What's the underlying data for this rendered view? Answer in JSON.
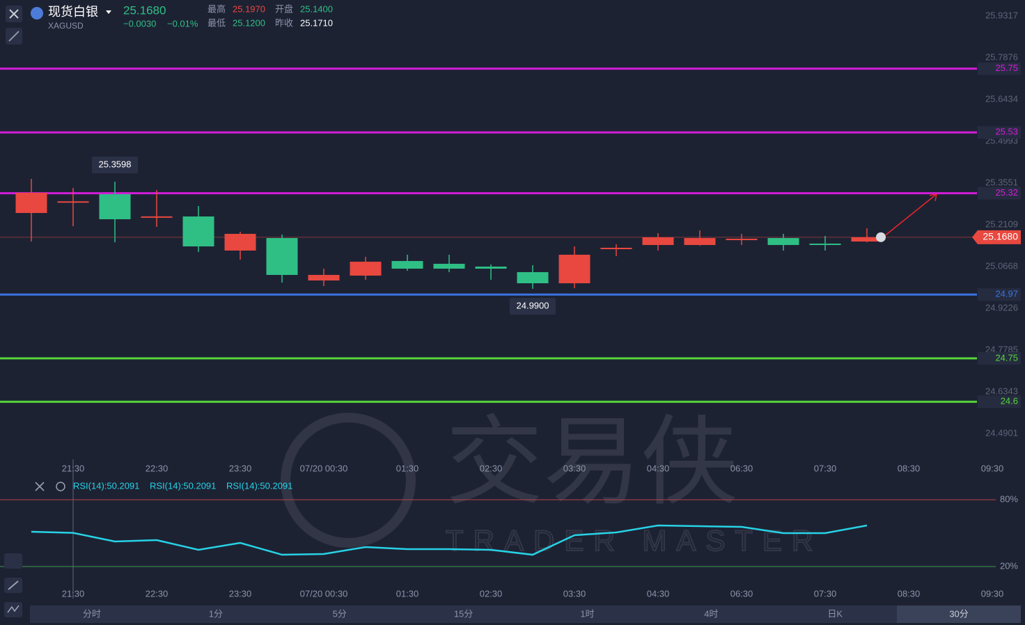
{
  "header": {
    "name": "现货白银",
    "symbol": "XAGUSD",
    "price": "25.1680",
    "change": "−0.0030",
    "change_pct": "−0.01%",
    "high_label": "最高",
    "high": "25.1970",
    "open_label": "开盘",
    "open": "25.1400",
    "low_label": "最低",
    "low": "25.1200",
    "prev_label": "昨收",
    "prev": "25.1710"
  },
  "watermark": {
    "cn": "交易侠",
    "en": "TRADER MASTER"
  },
  "tabs": [
    "分时",
    "1分",
    "5分",
    "15分",
    "1时",
    "4时",
    "日K",
    "30分"
  ],
  "chart_data": [
    {
      "type": "candlestick",
      "categories": [
        null,
        "21:30",
        null,
        "22:30",
        null,
        "23:30",
        null,
        "07/20 00:30",
        null,
        "01:30",
        null,
        "02:30",
        null,
        "03:30",
        null,
        "04:30",
        null,
        "06:30",
        null,
        "07:30",
        null,
        "08:30",
        null,
        "09:30"
      ],
      "open": [
        25.2517,
        25.29,
        25.3166,
        25.2373,
        25.2397,
        25.122,
        25.1652,
        25.0187,
        25.0355,
        25.0859,
        25.0763,
        25.0667,
        25.0475,
        25.0091,
        25.1268,
        25.1412,
        25.1412,
        25.1604,
        25.1652,
        25.146,
        25.1532,
        null,
        null,
        null
      ],
      "high": [
        25.3695,
        25.3382,
        25.3598,
        25.331,
        25.2757,
        25.1869,
        25.1773,
        25.0595,
        25.1004,
        25.1076,
        25.1076,
        25.0739,
        25.0715,
        25.1364,
        25.1436,
        25.1821,
        25.1917,
        25.1797,
        25.1797,
        25.1725,
        25.1989,
        null,
        null,
        null
      ],
      "low": [
        25.1532,
        25.2061,
        25.1508,
        25.2037,
        25.1172,
        25.0907,
        25.0115,
        24.9995,
        25.0211,
        25.0523,
        25.0475,
        25.0211,
        24.99,
        24.9922,
        25.1028,
        25.122,
        25.1388,
        25.1412,
        25.122,
        25.122,
        25.1508,
        null,
        null,
        null
      ],
      "close": [
        25.3214,
        25.292,
        25.2301,
        25.24,
        25.1364,
        25.1797,
        25.0379,
        25.0379,
        25.0835,
        25.0595,
        25.0595,
        25.0595,
        25.0091,
        25.1076,
        25.1316,
        25.1676,
        25.1652,
        25.1628,
        25.1412,
        25.1412,
        25.168,
        null,
        null,
        null
      ],
      "high_labels": [
        null,
        null,
        "25.3598",
        null,
        null,
        null,
        null,
        null,
        null,
        null,
        null,
        null,
        null,
        null,
        null,
        null,
        null,
        null,
        null,
        null,
        null,
        null,
        null,
        null
      ],
      "low_labels": [
        null,
        null,
        null,
        null,
        null,
        null,
        null,
        null,
        null,
        null,
        null,
        null,
        "24.9900",
        null,
        null,
        null,
        null,
        null,
        null,
        null,
        null,
        null,
        null,
        null
      ],
      "up_color": "#e8483f",
      "down_color": "#2fbf85",
      "ylim": [
        24.4012,
        25.987
      ],
      "yticks": [
        24.4901,
        24.6343,
        24.7785,
        24.9226,
        25.0668,
        25.2109,
        25.3551,
        25.4993,
        25.6434,
        25.7876,
        25.9317
      ],
      "levels": [
        {
          "value": 25.75,
          "color": "#d21ed8"
        },
        {
          "value": 25.53,
          "color": "#d21ed8"
        },
        {
          "value": 25.32,
          "color": "#d21ed8"
        },
        {
          "value": 24.97,
          "color": "#3b73e0"
        },
        {
          "value": 24.75,
          "color": "#55d63a"
        },
        {
          "value": 24.6,
          "color": "#55d63a"
        }
      ],
      "last_price": {
        "value": 25.168,
        "label": "25.1680"
      }
    },
    {
      "type": "line",
      "categories": [
        null,
        "21:30",
        null,
        "22:30",
        null,
        "23:30",
        null,
        "07/20 00:30",
        null,
        "01:30",
        null,
        "02:30",
        null,
        "03:30",
        null,
        "04:30",
        null,
        "06:30",
        null,
        "07:30",
        null,
        "08:30",
        null,
        "09:30"
      ],
      "legend_labels": [
        "RSI(14):50.2091",
        "RSI(14):50.2091",
        "RSI(14):50.2091"
      ],
      "series": [
        {
          "color": "#27d3e6",
          "values": [
            51.25,
            50.2091,
            42.5,
            43.75,
            35,
            41.25,
            30.6,
            31.25,
            37.5,
            35.6,
            35.6,
            35,
            30.6,
            48.1,
            50.6,
            56.9,
            56.25,
            55.6,
            50,
            50,
            56.9,
            null,
            null,
            null
          ]
        }
      ],
      "ylim": [
        0,
        100
      ],
      "yticks": [
        {
          "value": 20,
          "label": "20%"
        },
        {
          "value": 80,
          "label": "80%"
        }
      ],
      "tick_colors": [
        "#3a9a4a",
        "#b8434a"
      ]
    }
  ]
}
